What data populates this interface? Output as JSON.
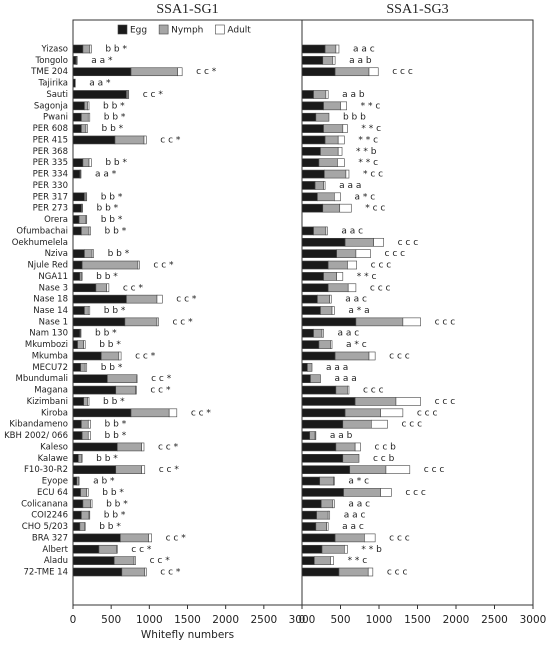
{
  "chart_data": [
    {
      "type": "bar",
      "orientation": "horizontal",
      "stacked": true,
      "title": "SSA1-SG1",
      "x_label": "Whitefly numbers",
      "legend": "top",
      "xlim": [
        0,
        3000
      ],
      "xticks": [
        0,
        500,
        1000,
        1500,
        2000,
        2500,
        3000
      ],
      "categories": [
        "Yizaso",
        "Tongolo",
        "TME 204",
        "Tajirika",
        "Sauti",
        "Sagonja",
        "Pwani",
        "PER 608",
        "PER 415",
        "PER 368",
        "PER 335",
        "PER 334",
        "PER 330",
        "PER 317",
        "PER 273",
        "Orera",
        "Ofumbachai",
        "Oekhumelela",
        "Nziva",
        "Njule Red",
        "NGA11",
        "Nase 3",
        "Nase 18",
        "Nase 14",
        "Nase 1",
        "Nam 130",
        "Mkumbozi",
        "Mkumba",
        "MECU72",
        "Mbundumali",
        "Magana",
        "Kizimbani",
        "Kiroba",
        "Kibandameno",
        "KBH 2002/ 066",
        "Kaleso",
        "Kalawe",
        "F10-30-R2",
        "Eyope",
        "ECU 64",
        "Colicanana",
        "COI2246",
        "CHO 5/203",
        "BRA 327",
        "Albert",
        "Aladu",
        "72-TME 14"
      ],
      "series": [
        {
          "name": "Egg",
          "color": "#1a1a1a",
          "values": [
            130,
            40,
            760,
            30,
            700,
            150,
            110,
            110,
            550,
            0,
            130,
            90,
            0,
            150,
            110,
            80,
            110,
            0,
            150,
            120,
            90,
            300,
            700,
            150,
            680,
            90,
            60,
            370,
            100,
            450,
            560,
            140,
            760,
            110,
            120,
            580,
            70,
            560,
            50,
            100,
            130,
            110,
            90,
            620,
            340,
            540,
            640
          ]
        },
        {
          "name": "Nymph",
          "color": "#a6a6a6",
          "values": [
            90,
            10,
            610,
            0,
            20,
            40,
            90,
            60,
            380,
            0,
            80,
            10,
            0,
            20,
            10,
            90,
            100,
            0,
            100,
            730,
            20,
            140,
            400,
            50,
            420,
            10,
            80,
            230,
            60,
            380,
            260,
            50,
            500,
            90,
            80,
            320,
            40,
            340,
            20,
            80,
            100,
            100,
            60,
            370,
            230,
            260,
            300
          ]
        },
        {
          "name": "Adult",
          "color": "#ffffff",
          "values": [
            20,
            5,
            60,
            0,
            10,
            20,
            20,
            20,
            30,
            0,
            30,
            5,
            0,
            10,
            5,
            10,
            20,
            0,
            20,
            20,
            10,
            30,
            70,
            20,
            20,
            5,
            20,
            30,
            20,
            10,
            10,
            20,
            100,
            30,
            30,
            30,
            10,
            40,
            10,
            20,
            20,
            10,
            10,
            40,
            10,
            20,
            20
          ]
        }
      ],
      "bar_labels": [
        "b b *",
        "a a *",
        "c c *",
        "a a *",
        "c c *",
        "b b *",
        "b b *",
        "b b *",
        "c c *",
        null,
        "b b *",
        "a a *",
        null,
        "b b *",
        "b b *",
        "b b *",
        "b b *",
        null,
        "b b *",
        "c c *",
        "b b *",
        "c c *",
        "c c *",
        "b b *",
        "c c *",
        "b b *",
        "b b *",
        "c c *",
        "b b *",
        "c c *",
        "c c *",
        "b b *",
        "c c *",
        "b b *",
        "b b *",
        "c c *",
        "b b *",
        "c c *",
        "a b *",
        "b b *",
        "b b *",
        "b b *",
        "b b *",
        "c c *",
        "c c *",
        "c c *",
        "c c *"
      ]
    },
    {
      "type": "bar",
      "orientation": "horizontal",
      "stacked": true,
      "title": "SSA1-SG3",
      "xlim": [
        0,
        3000
      ],
      "xticks": [
        0,
        500,
        1000,
        1500,
        2000,
        2500,
        3000
      ],
      "series": [
        {
          "color": "#1a1a1a",
          "values": [
            300,
            270,
            430,
            0,
            150,
            280,
            180,
            280,
            300,
            240,
            220,
            290,
            170,
            200,
            270,
            0,
            150,
            560,
            450,
            340,
            280,
            340,
            200,
            240,
            700,
            150,
            220,
            430,
            70,
            110,
            440,
            690,
            560,
            530,
            100,
            440,
            530,
            620,
            230,
            540,
            250,
            190,
            180,
            430,
            260,
            160,
            480
          ]
        },
        {
          "color": "#a6a6a6",
          "values": [
            140,
            130,
            440,
            0,
            160,
            220,
            170,
            250,
            170,
            230,
            240,
            280,
            110,
            220,
            220,
            0,
            160,
            370,
            250,
            250,
            170,
            260,
            160,
            150,
            610,
            110,
            150,
            440,
            60,
            130,
            150,
            530,
            460,
            370,
            70,
            250,
            210,
            470,
            180,
            480,
            150,
            150,
            140,
            380,
            290,
            210,
            380
          ]
        },
        {
          "color": "#ffffff",
          "values": [
            40,
            30,
            120,
            0,
            30,
            80,
            0,
            60,
            80,
            50,
            90,
            40,
            20,
            80,
            150,
            0,
            20,
            130,
            190,
            120,
            80,
            100,
            20,
            30,
            230,
            20,
            20,
            80,
            0,
            0,
            20,
            320,
            290,
            210,
            10,
            70,
            0,
            310,
            10,
            140,
            20,
            20,
            20,
            140,
            40,
            40,
            60
          ]
        }
      ],
      "bar_labels": [
        "a a c",
        "a a b",
        "c c c",
        null,
        "a a b",
        "* * c",
        "b b b",
        "* * c",
        "* * c",
        "* * b",
        "* * c",
        "* c c",
        "a a a",
        "a * c",
        "* c c",
        null,
        "a a c",
        "c c c",
        "c c c",
        "c c c",
        "* * c",
        "c c c",
        "a a c",
        "a * a",
        "c c c",
        "a a c",
        "a * c",
        "c c c",
        "a a a",
        "a a a",
        "c c c",
        "c c c",
        "c c c",
        "c c c",
        "a a b",
        "c c b",
        "c c b",
        "c c c",
        "a * c",
        "c c c",
        "a a c",
        "a a c",
        "a a c",
        "c c c",
        "* * b",
        "* * c",
        "c c c"
      ]
    }
  ]
}
